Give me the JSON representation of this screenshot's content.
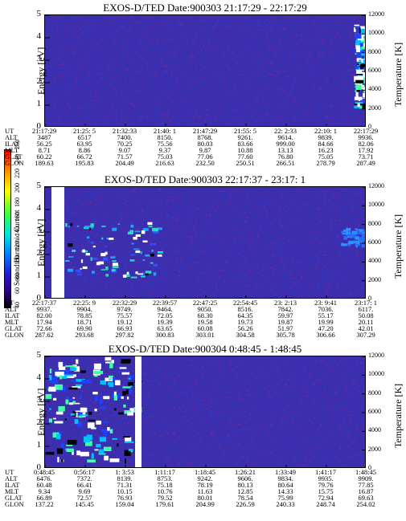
{
  "colorbar": {
    "label": "Second Harmonic Current",
    "ticks": [
      "40",
      "60",
      "80",
      "100",
      "120",
      "140",
      "160",
      "180",
      "200",
      "220",
      "240",
      "250"
    ]
  },
  "panels": [
    {
      "title": "EXOS-D/TED   Date:900303  21:17:29 - 22:17:29",
      "ylabel": "Energy [eV]",
      "yticks": [
        "5",
        "4",
        "3",
        "2",
        "1",
        "0"
      ],
      "ylabel_right": "Temperature [K]",
      "yticks_right": [
        "12000",
        "10000",
        "8000",
        "6000",
        "4000",
        "2000",
        "0"
      ],
      "rows": [
        "UT",
        "ALT",
        "ILAT",
        "MLT",
        "GLAT",
        "GLON"
      ],
      "cols": [
        [
          "21:17:29",
          "3487",
          "56.25",
          "8.71",
          "60.22",
          "189.63"
        ],
        [
          "21:25: 5",
          "6517",
          "63.95",
          "8.86",
          "66.72",
          "195.83"
        ],
        [
          "21:32:33",
          "7400.",
          "70.25",
          "9.07",
          "71.57",
          "204.49"
        ],
        [
          "21:40: 1",
          "8150.",
          "75.56",
          "9.37",
          "75.03",
          "216.63"
        ],
        [
          "21:47:29",
          "8768.",
          "80.03",
          "9.87",
          "77.06",
          "232.50"
        ],
        [
          "21:55: 5",
          "9261.",
          "83.66",
          "10.88",
          "77.60",
          "250.51"
        ],
        [
          "22: 2:33",
          "9614.",
          "999.00",
          "13.13",
          "76.80",
          "266.51"
        ],
        [
          "22:10: 1",
          "9839.",
          "84.66",
          "16.23",
          "75.05",
          "278.79"
        ],
        [
          "22:17:29",
          "9936.",
          "82.06",
          "17.92",
          "73.71",
          "287.49"
        ]
      ]
    },
    {
      "title": "EXOS-D/TED   Date:900303  22:17:37 - 23:17: 1",
      "ylabel": "Energy [eV]",
      "yticks": [
        "5",
        "4",
        "3",
        "2",
        "1",
        "0"
      ],
      "ylabel_right": "Temperature [K]",
      "yticks_right": [
        "12000",
        "10000",
        "8000",
        "6000",
        "4000",
        "2000",
        "0"
      ],
      "rows": [
        "UT",
        "ALT",
        "ILAT",
        "MLT",
        "GLAT",
        "GLON"
      ],
      "cols": [
        [
          "22:17:37",
          "9937.",
          "82.00",
          "17.94",
          "72.66",
          "287.62"
        ],
        [
          "22:25: 9",
          "9904.",
          "78.85",
          "18.71",
          "69.90",
          "293.68"
        ],
        [
          "22:32:29",
          "9749.",
          "75.57",
          "19.12",
          "66.93",
          "297.82"
        ],
        [
          "22:39:57",
          "9464.",
          "72.05",
          "19.39",
          "63.65",
          "300.83"
        ],
        [
          "22:47:25",
          "9050.",
          "68.30",
          "19.58",
          "60.08",
          "303.01"
        ],
        [
          "22:54:45",
          "8516.",
          "64.35",
          "19.73",
          "56.26",
          "304.58"
        ],
        [
          "23: 2:13",
          "7842.",
          "59.97",
          "19.87",
          "51.97",
          "305.78"
        ],
        [
          "23: 9:41",
          "7036.",
          "55.17",
          "19.99",
          "47.20",
          "306.66"
        ],
        [
          "23:17: 1",
          "6117.",
          "50.08",
          "20.11",
          "42.01",
          "307.29"
        ]
      ]
    },
    {
      "title": "EXOS-D/TED   Date:900304  0:48:45 - 1:48:45",
      "ylabel": "Energy [eV]",
      "yticks": [
        "5",
        "4",
        "3",
        "2",
        "1",
        "0"
      ],
      "ylabel_right": "Temperature [K]",
      "yticks_right": [
        "12000",
        "10000",
        "8000",
        "6000",
        "4000",
        "2000",
        "0"
      ],
      "rows": [
        "UT",
        "ALT",
        "ILAT",
        "MLT",
        "GLAT",
        "GLON"
      ],
      "cols": [
        [
          "0:48:45",
          "6476.",
          "60.48",
          "9.34",
          "66.89",
          "137.22"
        ],
        [
          "0:56:17",
          "7372.",
          "66.41",
          "9.69",
          "72.57",
          "145.45"
        ],
        [
          "1: 3:53",
          "8139.",
          "71.31",
          "10.15",
          "76.93",
          "159.04"
        ],
        [
          "1:11:17",
          "8753.",
          "75.18",
          "10.76",
          "79.52",
          "179.61"
        ],
        [
          "1:18:45",
          "9242.",
          "78.19",
          "11.63",
          "80.01",
          "204.99"
        ],
        [
          "1:26:21",
          "9606.",
          "80.13",
          "12.85",
          "78.54",
          "226.59"
        ],
        [
          "1:33:49",
          "9834.",
          "80.64",
          "14.33",
          "75.99",
          "240.33"
        ],
        [
          "1:41:17",
          "9935.",
          "79.76",
          "15.75",
          "72.94",
          "248.74"
        ],
        [
          "1:48:45",
          "9909.",
          "77.85",
          "16.87",
          "69.63",
          "254.02"
        ]
      ]
    }
  ],
  "chart_data": [
    {
      "type": "heatmap",
      "title": "EXOS-D/TED   Date:900303  21:17:29 - 22:17:29",
      "xlabel": "UT",
      "ylabel": "Energy [eV]",
      "ylabel_right": "Temperature [K]",
      "x_ticks": [
        "21:17:29",
        "21:25: 5",
        "21:32:33",
        "21:40: 1",
        "21:47:29",
        "21:55: 5",
        "22: 2:33",
        "22:10: 1",
        "22:17:29"
      ],
      "ylim": [
        0,
        5
      ],
      "ylim_right": [
        0,
        12000
      ],
      "colorbar_range": [
        40,
        250
      ],
      "background_level": 70,
      "features": [
        {
          "desc": "saturated (white) patches near end of interval",
          "x_fraction": [
            0.96,
            1.0
          ],
          "energy": [
            1.0,
            4.6
          ]
        }
      ]
    },
    {
      "type": "heatmap",
      "title": "EXOS-D/TED   Date:900303  22:17:37 - 23:17: 1",
      "xlabel": "UT",
      "ylabel": "Energy [eV]",
      "ylabel_right": "Temperature [K]",
      "x_ticks": [
        "22:17:37",
        "22:25: 9",
        "22:32:29",
        "22:39:57",
        "22:47:25",
        "22:54:45",
        "23: 2:13",
        "23: 9:41",
        "23:17: 1"
      ],
      "ylim": [
        0,
        5
      ],
      "ylim_right": [
        0,
        12000
      ],
      "colorbar_range": [
        40,
        250
      ],
      "background_level": 70,
      "features": [
        {
          "desc": "data gap",
          "x_fraction": [
            0.02,
            0.06
          ]
        },
        {
          "desc": "enhanced emission band",
          "x_fraction": [
            0.06,
            0.35
          ],
          "energy": [
            1.0,
            3.5
          ]
        },
        {
          "desc": "weak cyan patch",
          "x_fraction": [
            0.92,
            0.99
          ],
          "energy": [
            2.4,
            3.2
          ]
        }
      ]
    },
    {
      "type": "heatmap",
      "title": "EXOS-D/TED   Date:900304  0:48:45 - 1:48:45",
      "xlabel": "UT",
      "ylabel": "Energy [eV]",
      "ylabel_right": "Temperature [K]",
      "x_ticks": [
        "0:48:45",
        "0:56:17",
        "1: 3:53",
        "1:11:17",
        "1:18:45",
        "1:26:21",
        "1:33:49",
        "1:41:17",
        "1:48:45"
      ],
      "ylim": [
        0,
        5
      ],
      "ylim_right": [
        0,
        12000
      ],
      "colorbar_range": [
        40,
        250
      ],
      "background_level": 70,
      "features": [
        {
          "desc": "strong emission with saturated patches",
          "x_fraction": [
            0.0,
            0.28
          ],
          "energy": [
            0.4,
            5.0
          ]
        },
        {
          "desc": "data gap",
          "x_fraction": [
            0.28,
            0.3
          ]
        }
      ]
    }
  ]
}
